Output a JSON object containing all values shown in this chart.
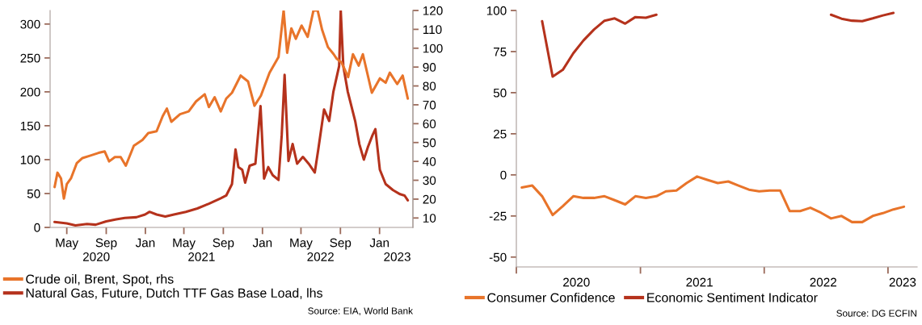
{
  "chart_data": [
    {
      "type": "line",
      "xlim": [
        "2020-03-10",
        "2023-04-15"
      ],
      "xticks": [
        {
          "value": "2020-05-01",
          "label": "May"
        },
        {
          "value": "2020-09-01",
          "label": "Sep"
        },
        {
          "value": "2021-01-01",
          "label": "Jan"
        },
        {
          "value": "2021-05-01",
          "label": "May"
        },
        {
          "value": "2021-09-01",
          "label": "Sep"
        },
        {
          "value": "2022-01-01",
          "label": "Jan"
        },
        {
          "value": "2022-05-01",
          "label": "May"
        },
        {
          "value": "2022-09-01",
          "label": "Sep"
        },
        {
          "value": "2023-01-01",
          "label": "Jan"
        }
      ],
      "x2lim": [
        "2020-03-10",
        "2023-04-15"
      ],
      "x2ticks": [
        {
          "value": "2020-08-01",
          "label": "2020"
        },
        {
          "value": "2021-06-25",
          "label": "2021"
        },
        {
          "value": "2022-07-01",
          "label": "2022"
        },
        {
          "value": "2023-02-25",
          "label": "2023"
        }
      ],
      "ylim": [
        0,
        320
      ],
      "yticks": [
        0,
        50,
        100,
        150,
        200,
        250,
        300
      ],
      "y2lim": [
        5,
        120
      ],
      "y2ticks": [
        10,
        20,
        30,
        40,
        50,
        60,
        70,
        80,
        90,
        100,
        110,
        120
      ],
      "legend": "bottom",
      "series": [
        {
          "name": "Crude oil, Brent, Spot, rhs",
          "color": "#e8742a",
          "axis": "y2",
          "x": [
            "2020-03-24",
            "2020-04-02",
            "2020-04-13",
            "2020-04-22",
            "2020-05-01",
            "2020-05-14",
            "2020-06-01",
            "2020-06-19",
            "2020-07-12",
            "2020-08-08",
            "2020-08-27",
            "2020-09-10",
            "2020-09-28",
            "2020-10-16",
            "2020-11-01",
            "2020-11-26",
            "2020-12-23",
            "2021-01-10",
            "2021-02-05",
            "2021-02-24",
            "2021-03-09",
            "2021-03-23",
            "2021-04-19",
            "2021-05-16",
            "2021-06-08",
            "2021-07-05",
            "2021-07-18",
            "2021-08-05",
            "2021-08-24",
            "2021-09-10",
            "2021-09-28",
            "2021-10-25",
            "2021-11-17",
            "2021-12-07",
            "2021-12-27",
            "2022-01-23",
            "2022-02-20",
            "2022-03-08",
            "2022-03-19",
            "2022-04-01",
            "2022-04-15",
            "2022-05-03",
            "2022-05-22",
            "2022-06-09",
            "2022-06-22",
            "2022-07-06",
            "2022-07-24",
            "2022-08-11",
            "2022-08-20",
            "2022-09-05",
            "2022-09-25",
            "2022-10-10",
            "2022-10-28",
            "2022-11-10",
            "2022-12-08",
            "2023-01-02",
            "2023-01-20",
            "2023-02-02",
            "2023-02-25",
            "2023-03-14",
            "2023-03-30"
          ],
          "values": [
            26.4,
            34,
            31,
            20.3,
            27.9,
            31,
            39,
            41.8,
            43,
            44.5,
            45.3,
            40,
            42.3,
            42.3,
            37.7,
            48.3,
            51.4,
            55,
            56,
            64,
            68,
            61,
            65,
            66.5,
            71.8,
            75.6,
            68.8,
            74,
            66.5,
            73.3,
            76.4,
            85.5,
            82.4,
            69.5,
            74.8,
            87,
            95.3,
            120,
            97.6,
            110.5,
            105,
            112,
            106,
            120,
            120,
            109.7,
            100.6,
            96.8,
            94.5,
            92.3,
            84.7,
            96.8,
            90.8,
            96.8,
            76.4,
            84,
            81.7,
            87,
            81,
            85.5,
            73.3
          ]
        },
        {
          "name": "Natural Gas, Future, Dutch TTF Gas Base Load, lhs",
          "color": "#b5321c",
          "x": [
            "2020-03-24",
            "2020-05-01",
            "2020-05-28",
            "2020-07-03",
            "2020-07-30",
            "2020-09-01",
            "2020-10-02",
            "2020-10-29",
            "2020-12-04",
            "2020-12-31",
            "2021-01-14",
            "2021-02-05",
            "2021-03-04",
            "2021-03-31",
            "2021-05-07",
            "2021-06-12",
            "2021-07-18",
            "2021-08-24",
            "2021-09-10",
            "2021-09-28",
            "2021-10-09",
            "2021-10-18",
            "2021-10-30",
            "2021-11-08",
            "2021-11-22",
            "2021-12-10",
            "2021-12-26",
            "2022-01-06",
            "2022-01-19",
            "2022-02-02",
            "2022-02-20",
            "2022-03-02",
            "2022-03-11",
            "2022-03-23",
            "2022-04-05",
            "2022-04-19",
            "2022-05-07",
            "2022-05-25",
            "2022-06-13",
            "2022-06-24",
            "2022-07-12",
            "2022-07-28",
            "2022-08-10",
            "2022-08-28",
            "2022-09-02",
            "2022-09-10",
            "2022-09-24",
            "2022-10-17",
            "2022-10-30",
            "2022-11-13",
            "2022-11-26",
            "2022-12-10",
            "2022-12-19",
            "2023-01-02",
            "2023-01-20",
            "2023-02-12",
            "2023-03-06",
            "2023-03-20",
            "2023-03-30"
          ],
          "values": [
            8,
            6,
            3,
            5,
            4,
            9,
            12,
            14,
            15,
            19,
            23,
            19,
            16,
            19,
            23,
            28,
            35,
            43,
            47,
            64,
            115,
            89,
            85,
            66,
            91,
            94,
            179,
            72,
            89,
            77,
            70,
            136,
            225,
            98,
            123,
            94,
            104,
            94,
            81,
            115,
            174,
            157,
            200,
            238,
            320,
            238,
            200,
            157,
            123,
            100,
            119,
            136,
            145,
            85,
            64,
            55,
            49,
            47,
            40
          ]
        }
      ],
      "annotations": [
        "Source: EIA, World Bank"
      ]
    },
    {
      "type": "line",
      "xlim": [
        "2019-12-16",
        "2023-03-12"
      ],
      "xticks": [
        {
          "value": "2019-12-16",
          "label": null
        },
        {
          "value": "2020-06-10",
          "label": "2020"
        },
        {
          "value": "2020-12-16",
          "label": null
        },
        {
          "value": "2021-06-08",
          "label": "2021"
        },
        {
          "value": "2021-12-16",
          "label": null
        },
        {
          "value": "2022-06-08",
          "label": "2022"
        },
        {
          "value": "2022-12-16",
          "label": null
        },
        {
          "value": "2023-01-28",
          "label": "2023"
        }
      ],
      "ylim": [
        -56,
        100
      ],
      "yticks": [
        -50,
        -25,
        0,
        25,
        50,
        75,
        100
      ],
      "legend": "bottom",
      "x": [
        "2020-01",
        "2020-02",
        "2020-03",
        "2020-04",
        "2020-05",
        "2020-06",
        "2020-07",
        "2020-08",
        "2020-09",
        "2020-10",
        "2020-11",
        "2020-12",
        "2021-01",
        "2021-02",
        "2021-03",
        "2021-04",
        "2021-05",
        "2021-06",
        "2021-07",
        "2021-08",
        "2021-09",
        "2021-10",
        "2021-11",
        "2021-12",
        "2022-01",
        "2022-02",
        "2022-03",
        "2022-04",
        "2022-05",
        "2022-06",
        "2022-07",
        "2022-08",
        "2022-09",
        "2022-10",
        "2022-11",
        "2022-12",
        "2023-01",
        "2023-02"
      ],
      "series": [
        {
          "name": "Consumer Confidence",
          "color": "#e8742a",
          "values": [
            -7.7,
            -6.5,
            -13,
            -24.4,
            -19,
            -13,
            -14,
            -14,
            -13,
            -15.4,
            -18,
            -13,
            -14,
            -13,
            -10,
            -9.5,
            -5,
            -1,
            -3,
            -5,
            -4,
            -6.5,
            -9,
            -10,
            -9.5,
            -9.5,
            -22,
            -22,
            -20,
            -23,
            -26.5,
            -25,
            -28.7,
            -28.7,
            -25,
            -23.3,
            -21,
            -19.4
          ]
        },
        {
          "name": "Economic Sentiment Indicator",
          "color": "#b5321c",
          "values": [
            null,
            null,
            93.5,
            59.8,
            63.9,
            74,
            81.8,
            88.4,
            93.8,
            95.2,
            92,
            96,
            95.6,
            97.4,
            null,
            null,
            null,
            null,
            null,
            null,
            null,
            null,
            null,
            null,
            null,
            null,
            null,
            null,
            null,
            null,
            97.4,
            95,
            93.8,
            93.5,
            95.2,
            97,
            98.5,
            null
          ]
        }
      ],
      "annotations": [
        "Source: DG ECFIN"
      ]
    }
  ]
}
